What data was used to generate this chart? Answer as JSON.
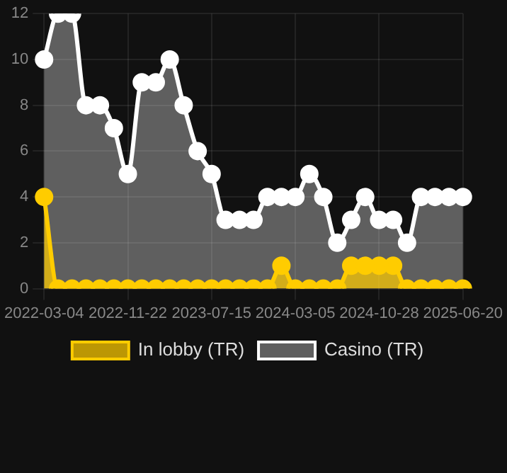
{
  "chart_data": {
    "type": "area",
    "categories": [
      "2022-03-04",
      null,
      null,
      null,
      null,
      null,
      "2022-11-22",
      null,
      null,
      null,
      null,
      null,
      "2023-07-15",
      null,
      null,
      null,
      null,
      null,
      "2024-03-05",
      null,
      null,
      null,
      null,
      null,
      "2024-10-28",
      null,
      null,
      null,
      null,
      null,
      "2025-06-20"
    ],
    "series": [
      {
        "name": "In lobby (TR)",
        "color": "#ffcc00",
        "values": [
          4,
          0,
          0,
          0,
          0,
          0,
          0,
          0,
          0,
          0,
          0,
          0,
          0,
          0,
          0,
          0,
          0,
          1,
          0,
          0,
          0,
          0,
          1,
          1,
          1,
          1,
          0,
          0,
          0,
          0,
          0
        ]
      },
      {
        "name": "Casino (TR)",
        "color": "#ffffff",
        "values": [
          10,
          12,
          12,
          8,
          8,
          7,
          5,
          9,
          9,
          10,
          8,
          6,
          5,
          3,
          3,
          3,
          4,
          4,
          4,
          5,
          4,
          2,
          3,
          4,
          3,
          3,
          2,
          4,
          4,
          4,
          4
        ]
      }
    ],
    "ylim": [
      0,
      12
    ],
    "yticks": [
      0,
      2,
      4,
      6,
      8,
      10,
      12
    ],
    "grid": true,
    "legend": "bottom",
    "marker": "circle"
  }
}
